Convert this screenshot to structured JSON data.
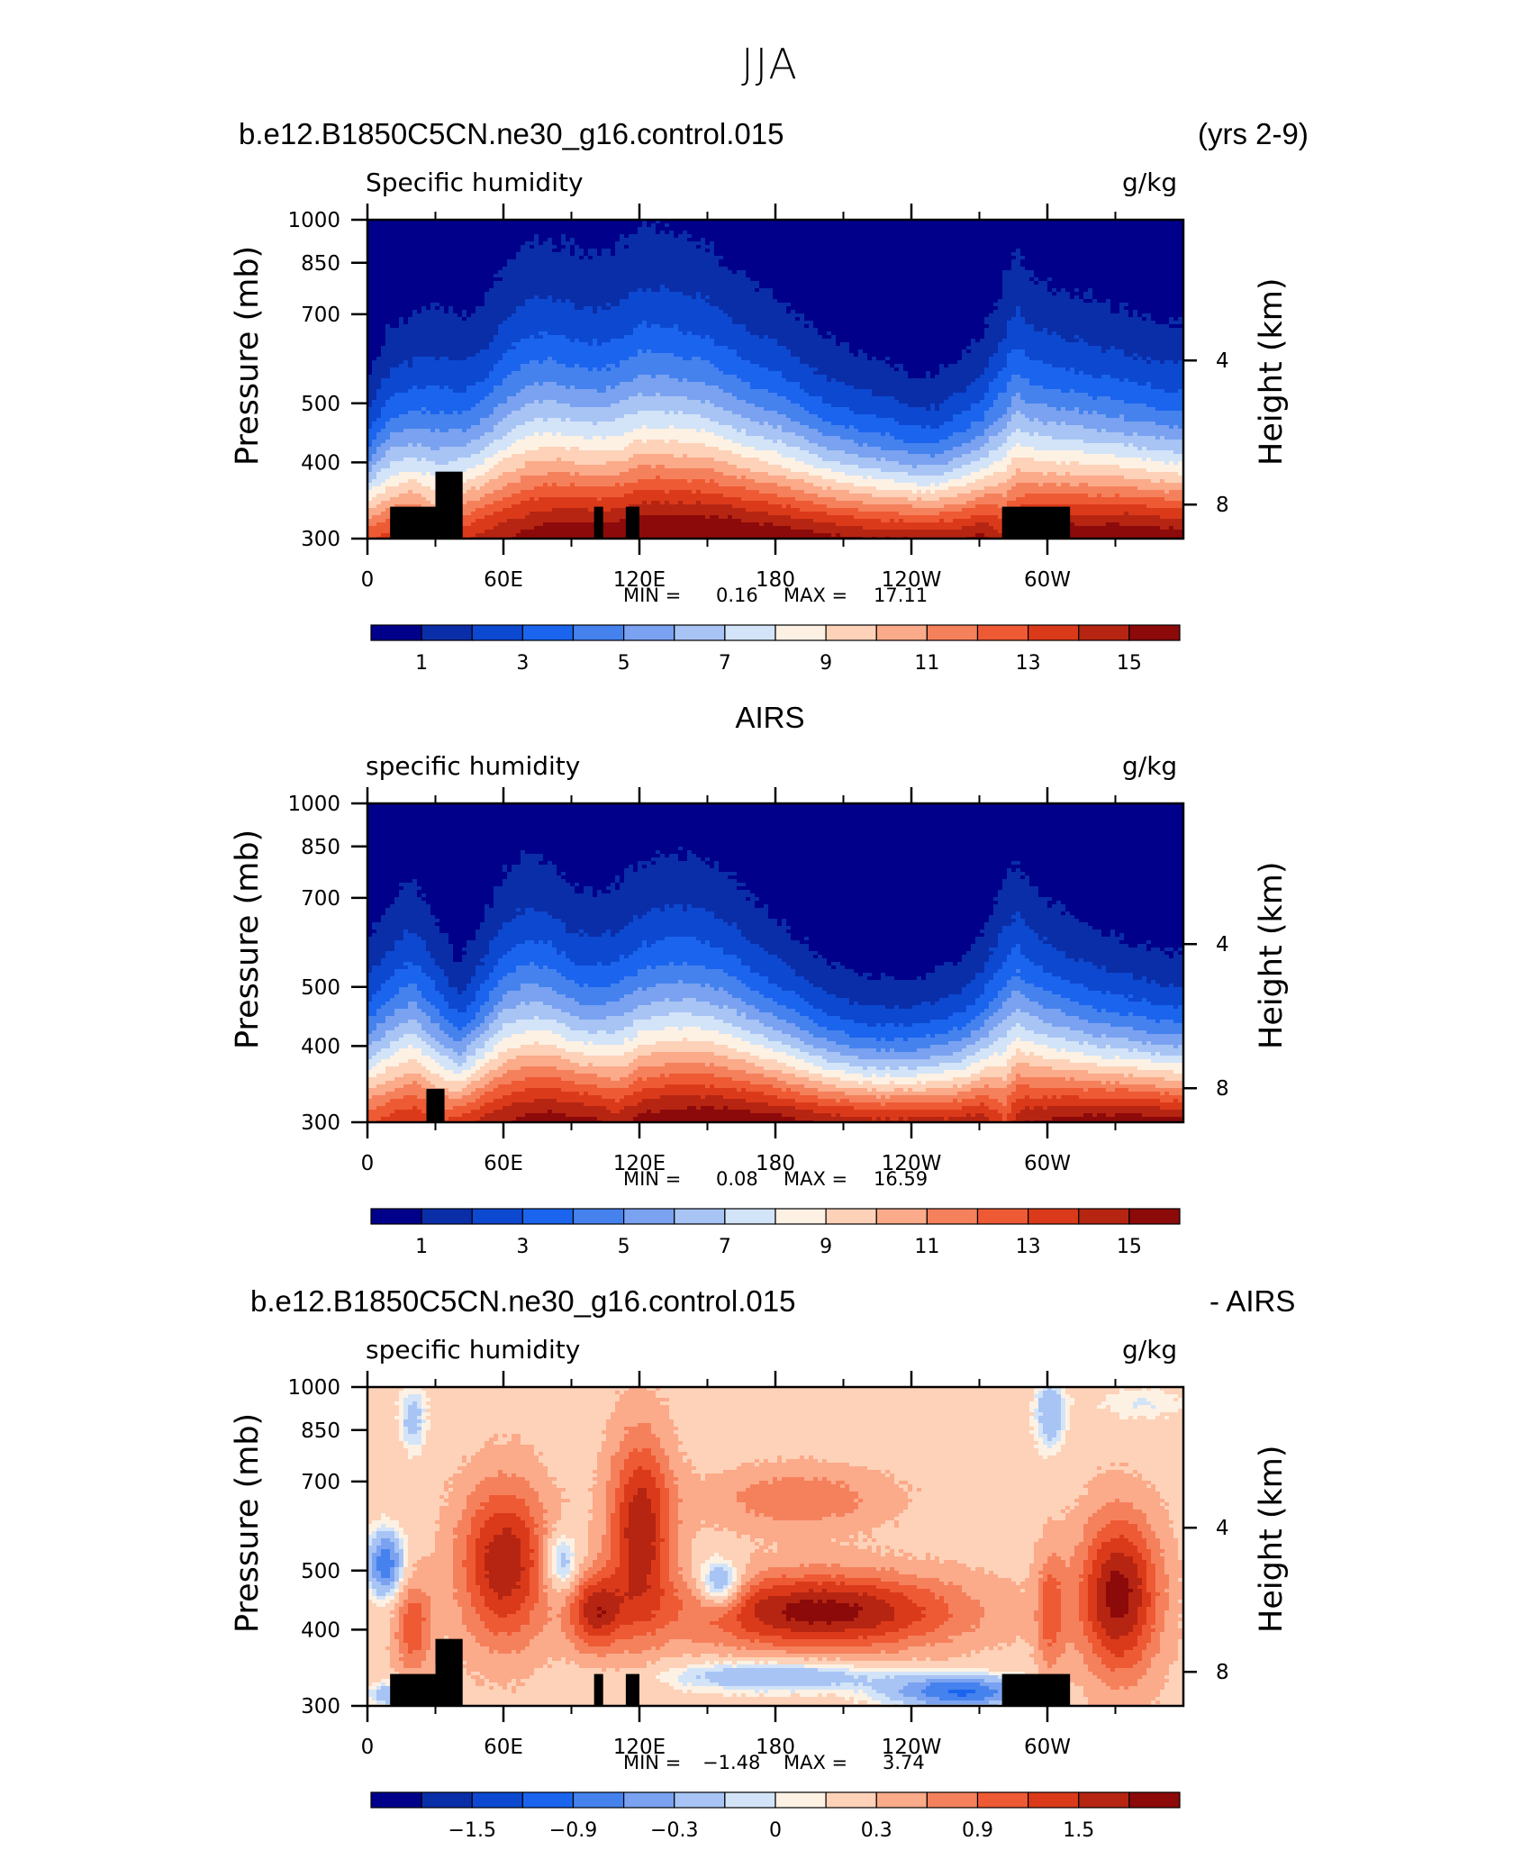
{
  "figure": {
    "title": "JJA",
    "case_name": "b.e12.B1850C5CN.ne30_g16.control.015",
    "years_label": "(yrs 2-9)"
  },
  "panels": [
    {
      "id": "model",
      "header_left": "b.e12.B1850C5CN.ne30_g16.control.015",
      "header_right": "(yrs 2-9)",
      "variable": "Specific humidity",
      "units": "g/kg",
      "y_axis_label": "Pressure (mb)",
      "right_axis_label": "Height (km)",
      "min_label": "MIN =",
      "min_value": "0.16",
      "max_label": "MAX =",
      "max_value": "17.11"
    },
    {
      "id": "obs",
      "header_center": "AIRS",
      "variable": "specific humidity",
      "units": "g/kg",
      "y_axis_label": "Pressure (mb)",
      "right_axis_label": "Height (km)",
      "min_label": "MIN =",
      "min_value": "0.08",
      "max_label": "MAX =",
      "max_value": "16.59"
    },
    {
      "id": "diff",
      "header_left": "b.e12.B1850C5CN.ne30_g16.control.015",
      "header_right": "- AIRS",
      "variable": "specific humidity",
      "units": "g/kg",
      "y_axis_label": "Pressure (mb)",
      "right_axis_label": "Height (km)",
      "min_label": "MIN =",
      "min_value": "-1.48",
      "max_label": "MAX =",
      "max_value": "3.74"
    }
  ],
  "axes": {
    "x_ticks": [
      "0",
      "60E",
      "120E",
      "180",
      "120W",
      "60W"
    ],
    "y_ticks": [
      "300",
      "400",
      "500",
      "700",
      "850",
      "1000"
    ],
    "right_ticks": [
      "8",
      "4"
    ]
  },
  "chart_data": [
    {
      "type": "heatmap",
      "title": "Specific humidity",
      "units": "g/kg",
      "x": [
        0,
        60,
        120,
        180,
        240,
        300
      ],
      "x_tick_labels": [
        "0",
        "60E",
        "120E",
        "180",
        "120W",
        "60W"
      ],
      "xlim": [
        0,
        360
      ],
      "y_pressure_ticks": [
        300,
        400,
        500,
        700,
        850,
        1000
      ],
      "ylim": [
        1000,
        300
      ],
      "y_scale": "log",
      "right_axis": {
        "label": "Height (km)",
        "ticks": [
          8,
          4
        ]
      },
      "contour_levels": [
        0,
        1,
        2,
        3,
        4,
        5,
        6,
        7,
        8,
        9,
        10,
        11,
        12,
        13,
        14,
        15,
        16
      ],
      "colorbar_labels": [
        "1",
        "3",
        "5",
        "7",
        "9",
        "11",
        "13",
        "15"
      ],
      "colorbar_colors": [
        "#00008a",
        "#0a2ea8",
        "#0d48d0",
        "#1b64ee",
        "#4582ee",
        "#7aa2f0",
        "#a8c4f4",
        "#d3e4f8",
        "#fdf1e4",
        "#fdd2b8",
        "#fbaa8a",
        "#f5815c",
        "#ee5a34",
        "#db3a1a",
        "#b52512",
        "#8c0a0a"
      ],
      "min": 0.16,
      "max": 17.11,
      "profile_by_longitude": {
        "lon": [
          0,
          10,
          20,
          30,
          40,
          50,
          60,
          70,
          80,
          90,
          100,
          110,
          120,
          130,
          140,
          150,
          160,
          170,
          180,
          190,
          200,
          210,
          220,
          230,
          240,
          250,
          260,
          270,
          280,
          285,
          290,
          300,
          310,
          320,
          330,
          340,
          350,
          360
        ],
        "surface_q": [
          13,
          13.5,
          14,
          12,
          13.5,
          14.5,
          15,
          15.5,
          16,
          16,
          16,
          16,
          16.5,
          16.5,
          16.5,
          16.5,
          16.5,
          16.2,
          16,
          15.8,
          15.5,
          15.3,
          15,
          15,
          15,
          15,
          15,
          15.5,
          14,
          15,
          15.5,
          15.8,
          16,
          16,
          16.2,
          16.2,
          16,
          15.8
        ],
        "moist_depth_pct": [
          0.46,
          0.6,
          0.62,
          0.68,
          0.62,
          0.64,
          0.74,
          0.8,
          0.8,
          0.78,
          0.76,
          0.78,
          0.82,
          0.82,
          0.8,
          0.78,
          0.72,
          0.68,
          0.65,
          0.6,
          0.55,
          0.52,
          0.5,
          0.48,
          0.45,
          0.45,
          0.5,
          0.55,
          0.72,
          0.78,
          0.72,
          0.68,
          0.66,
          0.64,
          0.62,
          0.6,
          0.58,
          0.58
        ]
      },
      "topography_lon_bands": [
        [
          10,
          30
        ],
        [
          30,
          42
        ],
        [
          100,
          104
        ],
        [
          114,
          120
        ],
        [
          280,
          310
        ]
      ]
    },
    {
      "type": "heatmap",
      "title": "specific humidity",
      "units": "g/kg",
      "x": [
        0,
        60,
        120,
        180,
        240,
        300
      ],
      "x_tick_labels": [
        "0",
        "60E",
        "120E",
        "180",
        "120W",
        "60W"
      ],
      "xlim": [
        0,
        360
      ],
      "y_pressure_ticks": [
        300,
        400,
        500,
        700,
        850,
        1000
      ],
      "ylim": [
        1000,
        300
      ],
      "y_scale": "log",
      "right_axis": {
        "label": "Height (km)",
        "ticks": [
          8,
          4
        ]
      },
      "contour_levels": [
        0,
        1,
        2,
        3,
        4,
        5,
        6,
        7,
        8,
        9,
        10,
        11,
        12,
        13,
        14,
        15,
        16
      ],
      "colorbar_labels": [
        "1",
        "3",
        "5",
        "7",
        "9",
        "11",
        "13",
        "15"
      ],
      "colorbar_colors": [
        "#00008a",
        "#0a2ea8",
        "#0d48d0",
        "#1b64ee",
        "#4582ee",
        "#7aa2f0",
        "#a8c4f4",
        "#d3e4f8",
        "#fdf1e4",
        "#fdd2b8",
        "#fbaa8a",
        "#f5815c",
        "#ee5a34",
        "#db3a1a",
        "#b52512",
        "#8c0a0a"
      ],
      "min": 0.08,
      "max": 16.59,
      "profile_by_longitude": {
        "lon": [
          0,
          10,
          20,
          30,
          40,
          50,
          60,
          70,
          80,
          90,
          100,
          110,
          120,
          130,
          140,
          150,
          160,
          170,
          180,
          190,
          200,
          210,
          220,
          230,
          240,
          250,
          260,
          270,
          280,
          285,
          290,
          300,
          310,
          320,
          330,
          340,
          350,
          360
        ],
        "surface_q": [
          13,
          13.5,
          14,
          13,
          13.5,
          14.5,
          15,
          15.5,
          15.8,
          15.5,
          15.3,
          14.5,
          15.5,
          15.8,
          16,
          16,
          16,
          15.8,
          15.6,
          15.3,
          15,
          14.8,
          14.5,
          14.5,
          14.5,
          14.5,
          14.5,
          14.8,
          13,
          14.5,
          15,
          15.2,
          15.5,
          15.6,
          15.8,
          15.8,
          15.6,
          15.5
        ],
        "moist_depth_pct": [
          0.52,
          0.62,
          0.68,
          0.58,
          0.45,
          0.55,
          0.68,
          0.72,
          0.7,
          0.64,
          0.62,
          0.66,
          0.7,
          0.72,
          0.72,
          0.7,
          0.66,
          0.6,
          0.55,
          0.5,
          0.45,
          0.42,
          0.4,
          0.4,
          0.4,
          0.42,
          0.45,
          0.52,
          0.7,
          0.72,
          0.66,
          0.6,
          0.56,
          0.52,
          0.5,
          0.48,
          0.46,
          0.46
        ]
      },
      "topography_lon_bands": [
        [
          26,
          34
        ]
      ]
    },
    {
      "type": "heatmap",
      "title": "specific humidity",
      "units": "g/kg",
      "x": [
        0,
        60,
        120,
        180,
        240,
        300
      ],
      "x_tick_labels": [
        "0",
        "60E",
        "120E",
        "180",
        "120W",
        "60W"
      ],
      "xlim": [
        0,
        360
      ],
      "y_pressure_ticks": [
        300,
        400,
        500,
        700,
        850,
        1000
      ],
      "ylim": [
        1000,
        300
      ],
      "y_scale": "log",
      "right_axis": {
        "label": "Height (km)",
        "ticks": [
          8,
          4
        ]
      },
      "contour_levels": [
        -2.1,
        -1.8,
        -1.5,
        -1.2,
        -0.9,
        -0.6,
        -0.3,
        0,
        0.15,
        0.3,
        0.6,
        0.9,
        1.2,
        1.5,
        1.8,
        2.1
      ],
      "colorbar_labels": [
        "-1.5",
        "-0.9",
        "-0.3",
        "0",
        "0.3",
        "0.9",
        "1.5"
      ],
      "colorbar_colors": [
        "#00008a",
        "#0a2ea8",
        "#0d48d0",
        "#1b64ee",
        "#4582ee",
        "#7aa2f0",
        "#a8c4f4",
        "#d3e4f8",
        "#fdf1e4",
        "#fdd2b8",
        "#fbaa8a",
        "#f5815c",
        "#ee5a34",
        "#db3a1a",
        "#b52512",
        "#8c0a0a"
      ],
      "min": -1.48,
      "max": 3.74,
      "topography_lon_bands": [
        [
          10,
          30
        ],
        [
          30,
          42
        ],
        [
          100,
          104
        ],
        [
          114,
          120
        ],
        [
          280,
          310
        ]
      ]
    }
  ]
}
